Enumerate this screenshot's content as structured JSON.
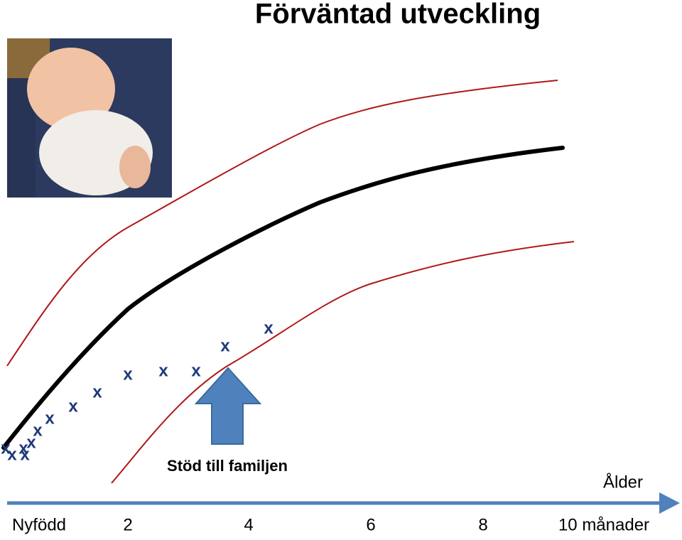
{
  "title": "Förväntad utveckling",
  "annotation": "Stöd till familjen",
  "axis_label": "Ålder",
  "ticks": [
    "Nyfödd",
    "2",
    "4",
    "6",
    "8",
    "10 månader"
  ],
  "markers": [
    "x",
    "x",
    "x",
    "x",
    "x",
    "x",
    "x",
    "x",
    "x",
    "x",
    "x",
    "x",
    "x",
    "x"
  ]
}
